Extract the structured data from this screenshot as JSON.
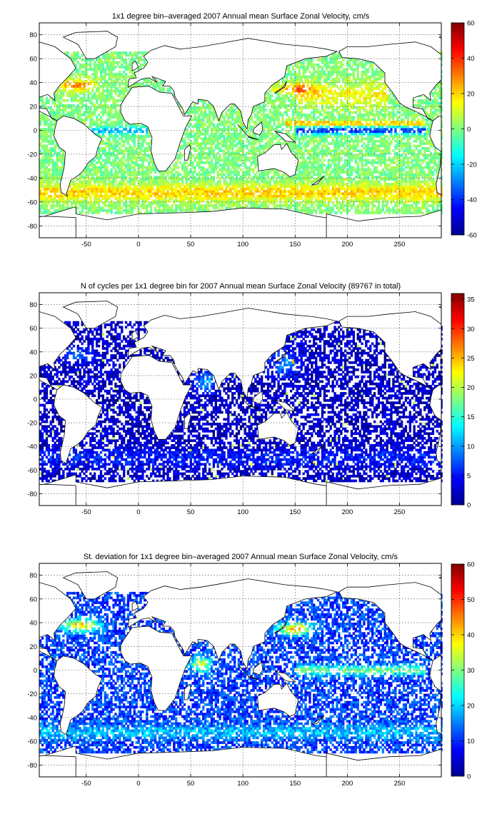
{
  "chart_data": [
    {
      "type": "heatmap",
      "title": "1x1 degree bin–averaged 2007 Annual mean Surface Zonal Velocity, cm/s",
      "xlim": [
        -95,
        290
      ],
      "ylim": [
        -90,
        90
      ],
      "xticks": [
        -50,
        0,
        50,
        100,
        150,
        200,
        250
      ],
      "yticks": [
        80,
        60,
        40,
        20,
        0,
        -20,
        -40,
        -60,
        -80
      ],
      "grid": true,
      "colormap": "jet",
      "colorbar": {
        "range": [
          -60,
          60
        ],
        "ticks": [
          60,
          40,
          20,
          0,
          -20,
          -40,
          -60
        ],
        "placement": "right"
      },
      "field": "zonal velocity",
      "highlights": [
        "strong eastward flow (up to ~60 cm/s) along Gulf Stream, Kuroshio and Antarctic Circumpolar Current",
        "strong westward flow (~-40 cm/s) along the equatorial Pacific",
        "westward flow along the equatorial Atlantic"
      ]
    },
    {
      "type": "heatmap",
      "title": "N of cycles per 1x1 degree bin for 2007 Annual mean Surface Zonal Velocity (89767 in total)",
      "xlim": [
        -95,
        290
      ],
      "ylim": [
        -90,
        90
      ],
      "xticks": [
        -50,
        0,
        50,
        100,
        150,
        200,
        250
      ],
      "yticks": [
        80,
        60,
        40,
        20,
        0,
        -20,
        -40,
        -60,
        -80
      ],
      "grid": true,
      "colormap": "jet",
      "colorbar": {
        "range": [
          0,
          36
        ],
        "ticks": [
          35,
          30,
          25,
          20,
          15,
          10,
          5,
          0
        ],
        "placement": "right"
      },
      "field": "count",
      "highlights": [
        "mostly low counts (0–5) over all oceans",
        "higher counts in the Kuroshio region and Arabian Sea"
      ]
    },
    {
      "type": "heatmap",
      "title": "St. deviation for 1x1 degree bin–averaged 2007 Annual mean Surface Zonal Velocity, cm/s",
      "xlim": [
        -95,
        290
      ],
      "ylim": [
        -90,
        90
      ],
      "xticks": [
        -50,
        0,
        50,
        100,
        150,
        200,
        250
      ],
      "yticks": [
        80,
        60,
        40,
        20,
        0,
        -20,
        -40,
        -60,
        -80
      ],
      "grid": true,
      "colormap": "jet",
      "colorbar": {
        "range": [
          0,
          60
        ],
        "ticks": [
          60,
          50,
          40,
          30,
          20,
          10,
          0
        ],
        "placement": "right"
      },
      "field": "standard deviation",
      "highlights": [
        "mostly low standard deviation (5–15 cm/s)",
        "high standard deviation in the Gulf Stream, Kuroshio, equatorial Pacific and Somali current"
      ]
    }
  ]
}
